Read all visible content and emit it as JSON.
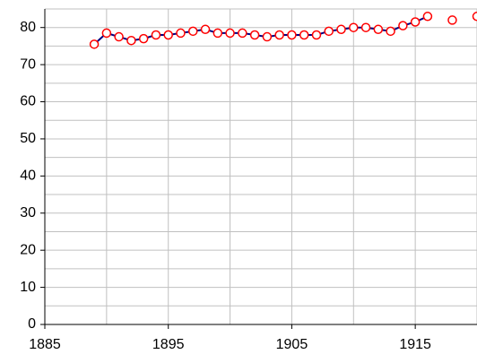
{
  "chart_data": {
    "type": "line",
    "x": [
      1889,
      1890,
      1891,
      1892,
      1893,
      1894,
      1895,
      1896,
      1897,
      1898,
      1899,
      1900,
      1901,
      1902,
      1903,
      1904,
      1905,
      1906,
      1907,
      1908,
      1909,
      1910,
      1911,
      1912,
      1913,
      1914,
      1915,
      1916,
      1917,
      1918,
      1919,
      1920
    ],
    "values": [
      75.5,
      78.5,
      77.5,
      76.5,
      77,
      78,
      78,
      78.5,
      79,
      79.5,
      78.5,
      78.5,
      78.5,
      78,
      77.5,
      78,
      78,
      78,
      78,
      79,
      79.5,
      80,
      80,
      79.5,
      79,
      80.5,
      81.5,
      83,
      null,
      82,
      null,
      83
    ],
    "color": "#000080",
    "marker_color": "#ff0000",
    "xlim": [
      1885,
      1920
    ],
    "ylim": [
      0,
      85
    ],
    "xticks": [
      1885,
      1895,
      1905,
      1915
    ],
    "yticks": [
      0,
      10,
      20,
      30,
      40,
      50,
      60,
      70,
      80
    ],
    "xgrid": [
      1890,
      1895,
      1900,
      1905,
      1910,
      1915,
      1920
    ],
    "ygrid": [
      5,
      10,
      15,
      20,
      25,
      30,
      35,
      40,
      45,
      50,
      55,
      60,
      65,
      70,
      75,
      80,
      85
    ],
    "grid": true
  }
}
